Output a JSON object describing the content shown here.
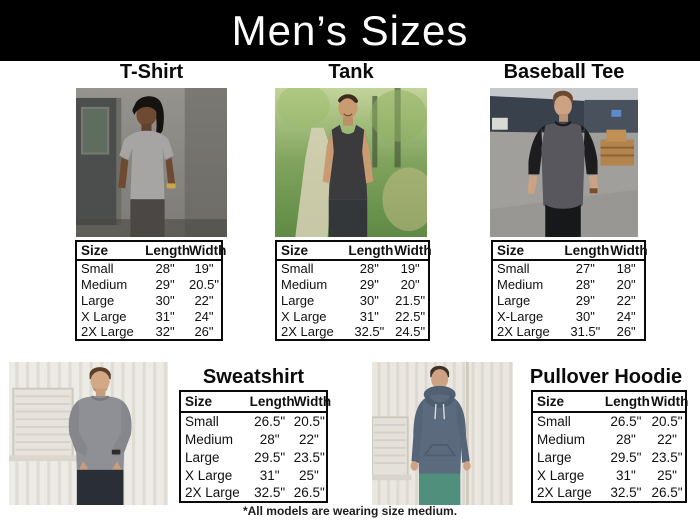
{
  "page": {
    "title": "Men’s Sizes",
    "footnote": "*All models are wearing size medium.",
    "background_color": "#ffffff",
    "header_background": "#000000",
    "header_text_color": "#ffffff",
    "table_border_color": "#0a0a0a",
    "text_color": "#111111"
  },
  "table_columns": [
    "Size",
    "Length",
    "Width"
  ],
  "products": [
    {
      "name": "T-Shirt",
      "photo_label": "man-wearing-gray-t-shirt-industrial-background",
      "garment_color": "#a6a5a3",
      "rows": [
        [
          "Small",
          "28\"",
          "19\""
        ],
        [
          "Medium",
          "29\"",
          "20.5\""
        ],
        [
          "Large",
          "30\"",
          "22\""
        ],
        [
          "X Large",
          "31\"",
          "24\""
        ],
        [
          "2X Large",
          "32\"",
          "26\""
        ]
      ]
    },
    {
      "name": "Tank",
      "photo_label": "man-wearing-charcoal-tank-forest-path-background",
      "garment_color": "#3b3b3e",
      "rows": [
        [
          "Small",
          "28\"",
          "19\""
        ],
        [
          "Medium",
          "29\"",
          "20\""
        ],
        [
          "Large",
          "30\"",
          "21.5\""
        ],
        [
          "X Large",
          "31\"",
          "22.5\""
        ],
        [
          "2X Large",
          "32.5\"",
          "24.5\""
        ]
      ]
    },
    {
      "name": "Baseball Tee",
      "photo_label": "man-wearing-raglan-baseball-tee-parking-lot-background",
      "garment_color": "#57575d",
      "rows": [
        [
          "Small",
          "27\"",
          "18\""
        ],
        [
          "Medium",
          "28\"",
          "20\""
        ],
        [
          "Large",
          "29\"",
          "22\""
        ],
        [
          "X-Large",
          "30\"",
          "24\""
        ],
        [
          "2X Large",
          "31.5\"",
          "26\""
        ]
      ]
    },
    {
      "name": "Sweatshirt",
      "photo_label": "man-wearing-gray-sweatshirt-white-wall-background",
      "garment_color": "#8e9095",
      "rows": [
        [
          "Small",
          "26.5\"",
          "20.5\""
        ],
        [
          "Medium",
          "28\"",
          "22\""
        ],
        [
          "Large",
          "29.5\"",
          "23.5\""
        ],
        [
          "X Large",
          "31\"",
          "25\""
        ],
        [
          "2X Large",
          "32.5\"",
          "26.5\""
        ]
      ]
    },
    {
      "name": "Pullover Hoodie",
      "photo_label": "man-wearing-slate-pullover-hoodie-white-wall-background",
      "garment_color": "#5b6a7c",
      "rows": [
        [
          "Small",
          "26.5\"",
          "20.5\""
        ],
        [
          "Medium",
          "28\"",
          "22\""
        ],
        [
          "Large",
          "29.5\"",
          "23.5\""
        ],
        [
          "X Large",
          "31\"",
          "25\""
        ],
        [
          "2X Large",
          "32.5\"",
          "26.5\""
        ]
      ]
    }
  ]
}
